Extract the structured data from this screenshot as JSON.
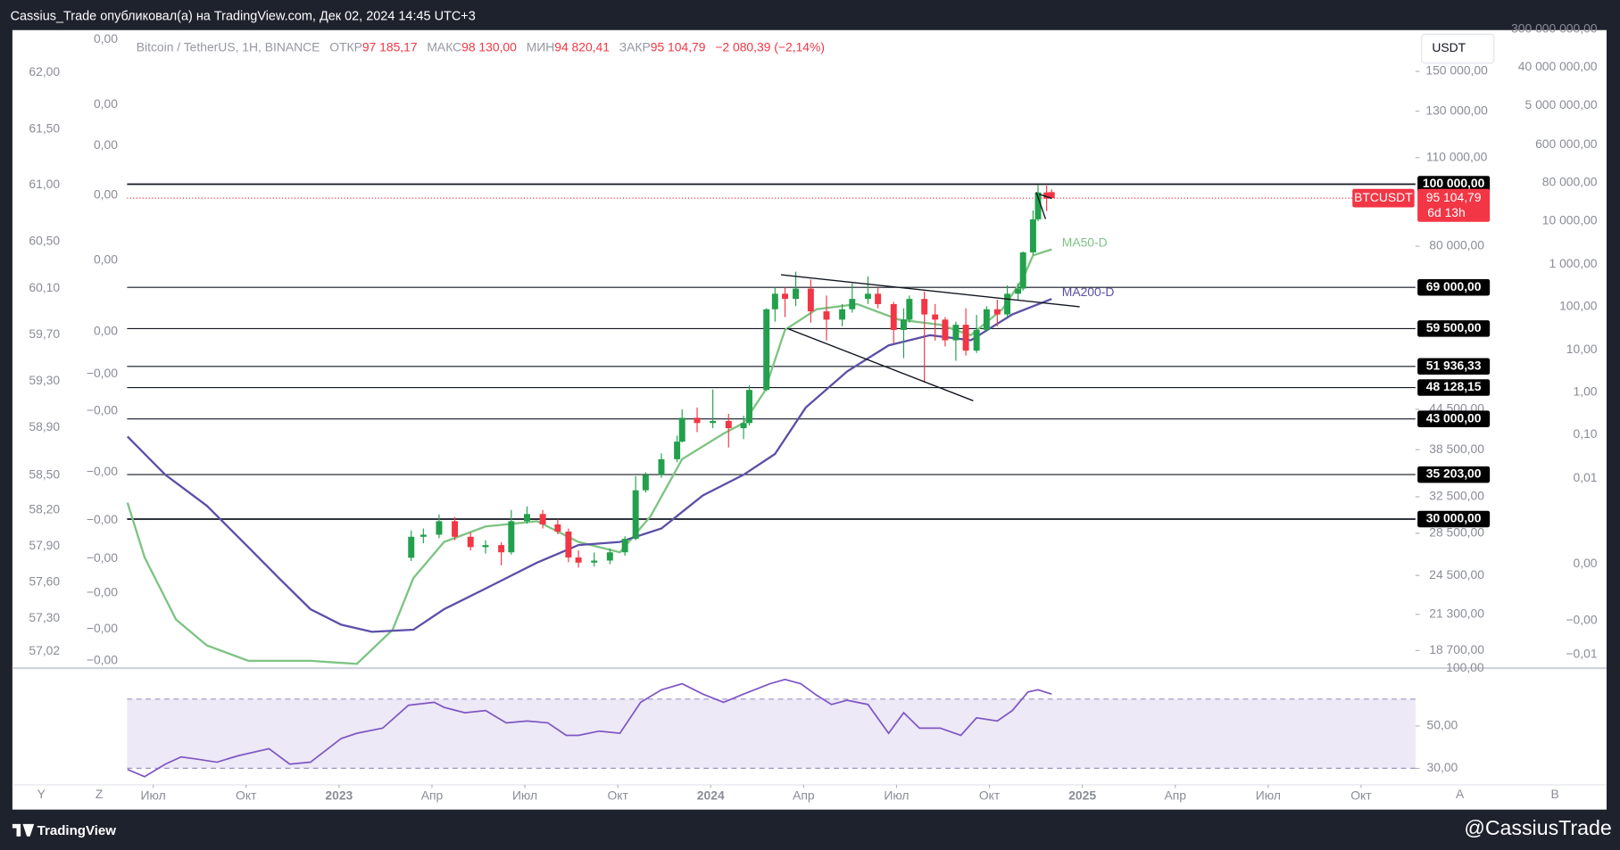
{
  "header": {
    "title": "Cassius_Trade опубликовал(а) на TradingView.com, Дек 02, 2024 14:45 UTC+3"
  },
  "footer": {
    "brand": "TradingView",
    "author": "@CassiusTrade"
  },
  "buttons": {
    "currency": "USDT",
    "left": [
      "Y",
      "Z"
    ],
    "right": [
      "A",
      "B"
    ]
  },
  "legend": {
    "symbol": "Bitcoin / TetherUS, 1H, BINANCE",
    "open_label": "ОТКР",
    "open": "97 185,17",
    "high_label": "МАКС",
    "high": "98 130,00",
    "low_label": "МИН",
    "low": "94 820,41",
    "close_label": "ЗАКР",
    "close": "95 104,79",
    "change": "−2 080,39 (−2,14%)"
  },
  "overlay_scales": {
    "left_a": [
      "62,00",
      "61,50",
      "61,00",
      "60,50",
      "60,10",
      "59,70",
      "59,30",
      "58,90",
      "58,50",
      "58,20",
      "57,90",
      "57,60",
      "57,30",
      "57,02"
    ],
    "left_b": [
      "0,00",
      "0,00",
      "0,00",
      "0,00",
      "0,00",
      "0,00",
      "−0,00",
      "−0,00",
      "−0,00",
      "−0,00",
      "−0,00",
      "−0,00",
      "−0,00",
      "−0,00"
    ],
    "right_b": [
      "300 000 000,00",
      "40 000 000,00",
      "5 000 000,00",
      "600 000,00",
      "80 000,00",
      "10 000,00",
      "1 000,00",
      "100,00",
      "10,00",
      "1,00",
      "0,10",
      "0,01",
      "0,00",
      "−0,00",
      "−0,01"
    ],
    "rsi_top": "100,00"
  },
  "chart_data": {
    "type": "candlestick",
    "log_scale": true,
    "xlim": [
      -45.7,
      150.6
    ],
    "ylim": [
      17750,
      174000
    ],
    "xticks": [
      {
        "value": -26,
        "label": "Июл"
      },
      {
        "value": -13,
        "label": "Окт"
      },
      {
        "value": 0,
        "label": "2023"
      },
      {
        "value": 13,
        "label": "Апр"
      },
      {
        "value": 26,
        "label": "Июл"
      },
      {
        "value": 39,
        "label": "Окт"
      },
      {
        "value": 52,
        "label": "2024"
      },
      {
        "value": 65,
        "label": "Апр"
      },
      {
        "value": 78,
        "label": "Июл"
      },
      {
        "value": 91,
        "label": "Окт"
      },
      {
        "value": 104,
        "label": "2025"
      },
      {
        "value": 117,
        "label": "Апр"
      },
      {
        "value": 130,
        "label": "Июл"
      },
      {
        "value": 143,
        "label": "Окт"
      }
    ],
    "yticks": [
      {
        "value": 150000,
        "label": "150 000,00"
      },
      {
        "value": 130000,
        "label": "130 000,00"
      },
      {
        "value": 110000,
        "label": "110 000,00"
      },
      {
        "value": 80000,
        "label": "80 000,00"
      },
      {
        "value": 44500,
        "label": "44 500,00"
      },
      {
        "value": 38500,
        "label": "38 500,00"
      },
      {
        "value": 32500,
        "label": "32 500,00"
      },
      {
        "value": 28500,
        "label": "28 500,00"
      },
      {
        "value": 24500,
        "label": "24 500,00"
      },
      {
        "value": 21300,
        "label": "21 300,00"
      },
      {
        "value": 18700,
        "label": "18 700,00"
      }
    ],
    "levels": [
      {
        "value": 100000,
        "label": "100 000,00"
      },
      {
        "value": 69000,
        "label": "69 000,00"
      },
      {
        "value": 59500,
        "label": "59 500,00"
      },
      {
        "value": 51936.33,
        "label": "51 936,33"
      },
      {
        "value": 48128.15,
        "label": "48 128,15"
      },
      {
        "value": 43000,
        "label": "43 000,00"
      },
      {
        "value": 35203,
        "label": "35 203,00"
      },
      {
        "value": 30000,
        "label": "30 000,00"
      }
    ],
    "last_price": {
      "name": "BTCUSDT",
      "value": 95104.79,
      "label": "95 104,79",
      "countdown": "6d 13h",
      "color": "#f23645"
    },
    "up_color": "#22a04b",
    "down_color": "#f23645",
    "candles": {
      "x": [
        10.1,
        11.8,
        14.0,
        16.2,
        18.4,
        20.5,
        22.7,
        24.1,
        26.3,
        28.5,
        30.6,
        32.1,
        33.5,
        35.7,
        37.9,
        40.0,
        41.5,
        42.9,
        45.1,
        47.3,
        48.0,
        50.1,
        52.3,
        54.5,
        56.6,
        57.4,
        59.8,
        61.0,
        62.4,
        63.9,
        66.0,
        68.2,
        70.4,
        71.8,
        74.0,
        75.4,
        77.6,
        79.0,
        79.8,
        81.9,
        83.4,
        84.8,
        86.3,
        87.7,
        89.2,
        90.6,
        92.1,
        93.5,
        95.0,
        95.7,
        97.1,
        97.8,
        99.0,
        99.7
      ],
      "open": [
        26100,
        28150,
        28360,
        29770,
        28150,
        27120,
        27320,
        26620,
        29770,
        30550,
        29430,
        28680,
        26130,
        25650,
        25840,
        26620,
        27940,
        33270,
        35180,
        37200,
        39630,
        43170,
        42370,
        42690,
        41590,
        42370,
        47720,
        63780,
        67440,
        66200,
        68700,
        63310,
        61450,
        63780,
        66200,
        67440,
        64970,
        59210,
        61450,
        66200,
        62600,
        61450,
        57050,
        60320,
        54970,
        59210,
        63780,
        62600,
        67440,
        68700,
        78240,
        88120,
        97070,
        97185.17
      ],
      "high": [
        28800,
        29000,
        30500,
        30200,
        28600,
        27800,
        27600,
        31000,
        31400,
        31000,
        30000,
        29000,
        26800,
        26600,
        27000,
        28200,
        35000,
        35500,
        38000,
        40500,
        44500,
        44800,
        47800,
        43800,
        43500,
        48500,
        64000,
        69000,
        69000,
        73000,
        71000,
        67000,
        65000,
        70000,
        71800,
        69000,
        65500,
        64000,
        67000,
        68000,
        65000,
        62000,
        61000,
        64000,
        62500,
        64500,
        66000,
        69500,
        70000,
        78500,
        91000,
        99800,
        99500,
        98130
      ],
      "low": [
        25800,
        27500,
        28000,
        27800,
        26800,
        26500,
        25400,
        26400,
        29500,
        29000,
        28400,
        25700,
        25200,
        25300,
        25500,
        26300,
        27800,
        33000,
        34800,
        36800,
        39500,
        41000,
        41600,
        38800,
        40000,
        42000,
        47500,
        61000,
        62000,
        64500,
        60800,
        57000,
        60000,
        63000,
        65000,
        64000,
        56500,
        53500,
        60800,
        49000,
        57000,
        55800,
        53000,
        54000,
        54500,
        58800,
        60000,
        62000,
        66000,
        68200,
        77500,
        87500,
        90800,
        94820.41
      ],
      "close": [
        28150,
        28360,
        29770,
        28150,
        27120,
        27320,
        26620,
        29770,
        30550,
        29430,
        28680,
        26130,
        25650,
        25840,
        26620,
        27940,
        33270,
        35180,
        37200,
        39630,
        43170,
        42370,
        42690,
        41590,
        42370,
        47720,
        63780,
        67440,
        66200,
        68700,
        63310,
        61450,
        63780,
        66200,
        67440,
        64970,
        59210,
        61450,
        66200,
        62600,
        61450,
        57050,
        60320,
        54970,
        59210,
        63780,
        62600,
        67440,
        68700,
        78240,
        88120,
        97070,
        94930,
        95104.79
      ]
    },
    "series": [
      {
        "name": "MA50-D",
        "color": "#7dc383",
        "x": [
          -29.6,
          -27.2,
          -22.8,
          -18.5,
          -12.7,
          -4.0,
          2.5,
          7.5,
          10.4,
          14.7,
          20.5,
          27.7,
          33.5,
          39.3,
          43.6,
          48.0,
          53.8,
          56.6,
          59.5,
          62.4,
          66.8,
          72.5,
          78.3,
          84.1,
          88.4,
          92.8,
          95.7,
          97.1,
          99.7
        ],
        "values": [
          31820,
          26130,
          20900,
          19050,
          18020,
          18020,
          17820,
          20150,
          24260,
          27630,
          29210,
          29770,
          27630,
          26620,
          30320,
          37200,
          40800,
          42370,
          47400,
          59210,
          63780,
          64970,
          61450,
          60320,
          58100,
          63780,
          71300,
          77400,
          79100
        ]
      },
      {
        "name": "MA200-D",
        "color": "#5b4fa8",
        "x": [
          -29.6,
          -24.3,
          -18.5,
          -12.7,
          -8.4,
          -4.0,
          0.3,
          4.6,
          10.4,
          14.7,
          20.5,
          27.7,
          33.5,
          39.3,
          45.1,
          50.9,
          56.6,
          61.0,
          65.3,
          71.1,
          76.9,
          82.7,
          88.4,
          94.2,
          99.7
        ],
        "values": [
          40360,
          35180,
          31470,
          27120,
          24260,
          21700,
          20520,
          20000,
          20150,
          21700,
          23370,
          25650,
          27320,
          27630,
          29000,
          32660,
          35180,
          37900,
          44800,
          51000,
          56000,
          58100,
          57050,
          62600,
          66200
        ]
      }
    ],
    "rsi": {
      "color": "#7e57c2",
      "ylim": [
        11.5,
        75.9
      ],
      "yticks": [
        {
          "value": 50,
          "label": "50,00"
        },
        {
          "value": 30,
          "label": "30,00"
        }
      ],
      "x": [
        -29.6,
        -27.2,
        -24.3,
        -22.1,
        -19.9,
        -17.1,
        -14.2,
        -9.8,
        -6.9,
        -4.0,
        0.3,
        2.5,
        6.1,
        9.7,
        13.3,
        14.7,
        17.6,
        20.5,
        23.4,
        26.3,
        29.2,
        31.8,
        33.5,
        36.4,
        39.3,
        42.2,
        45.1,
        48.0,
        50.9,
        53.8,
        56.6,
        60.3,
        62.4,
        64.6,
        66.8,
        68.9,
        71.1,
        74.0,
        76.9,
        79.0,
        81.2,
        84.1,
        87.0,
        89.2,
        92.1,
        94.2,
        96.4,
        97.8,
        99.7
      ],
      "values": [
        29.5,
        26.1,
        32.0,
        35.4,
        34.4,
        32.9,
        35.9,
        39.3,
        32.0,
        32.9,
        44.1,
        46.6,
        49.0,
        59.8,
        61.2,
        58.8,
        56.3,
        57.3,
        51.5,
        52.4,
        51.5,
        45.6,
        45.6,
        47.6,
        46.6,
        61.2,
        67.1,
        70.0,
        65.1,
        61.2,
        65.1,
        70.0,
        72.0,
        70.0,
        64.6,
        60.2,
        62.2,
        60.2,
        46.6,
        56.3,
        49.0,
        49.0,
        45.6,
        53.9,
        52.4,
        57.3,
        66.1,
        67.1,
        65.1
      ]
    }
  }
}
